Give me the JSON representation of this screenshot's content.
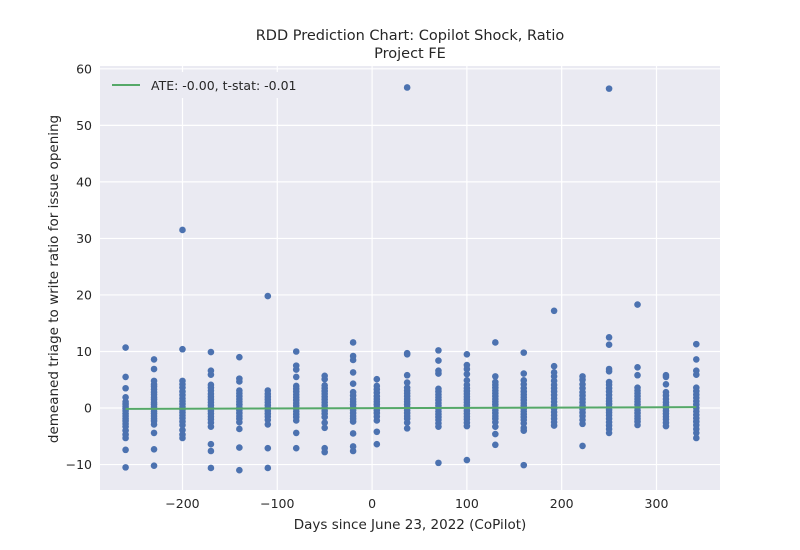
{
  "chart_data": {
    "type": "scatter",
    "title": "RDD Prediction Chart: Copilot Shock, Ratio",
    "subtitle": "Project FE",
    "xlabel": "Days since June 23, 2022 (CoPilot)",
    "ylabel": "demeaned triage to write ratio for issue opening",
    "xlim": [
      -287,
      367
    ],
    "ylim": [
      -14.5,
      60.5
    ],
    "x_ticks": [
      -200,
      -100,
      0,
      100,
      200,
      300
    ],
    "y_ticks": [
      -10,
      0,
      10,
      20,
      30,
      40,
      50,
      60
    ],
    "x_tick_labels": [
      "−200",
      "−100",
      "0",
      "100",
      "200",
      "300"
    ],
    "y_tick_labels": [
      "−10",
      "0",
      "10",
      "20",
      "30",
      "40",
      "50",
      "60"
    ],
    "grid": true,
    "legend_position": "top-left",
    "colors": {
      "background": "#EAEAF2",
      "grid": "#FFFFFF",
      "points": "#4C72B0",
      "line": "#55A868"
    },
    "series": [
      {
        "name": "points",
        "kind": "scatter",
        "groups": [
          {
            "x": -260,
            "y": [
              10.7,
              5.5,
              3.5,
              1.9,
              1.1,
              0.7,
              0.3,
              -0.1,
              -0.5,
              -1.0,
              -1.4,
              -1.9,
              -2.3,
              -2.8,
              -3.3,
              -4.0,
              -4.7,
              -5.3,
              -7.4,
              -10.5
            ]
          },
          {
            "x": -230,
            "y": [
              8.6,
              6.9,
              4.8,
              4.2,
              3.8,
              3.3,
              2.8,
              2.4,
              1.9,
              1.5,
              1.0,
              0.6,
              0.2,
              -0.2,
              -0.6,
              -1.0,
              -1.4,
              -1.9,
              -2.3,
              -2.9,
              -4.4,
              -7.3,
              -10.2
            ]
          },
          {
            "x": -200,
            "y": [
              31.5,
              10.4,
              4.8,
              4.2,
              3.6,
              2.9,
              2.3,
              1.7,
              1.2,
              0.7,
              0.2,
              -0.3,
              -0.8,
              -1.3,
              -1.8,
              -2.4,
              -3.0,
              -3.9,
              -4.7,
              -5.3
            ]
          },
          {
            "x": -170,
            "y": [
              9.9,
              6.6,
              5.9,
              4.1,
              3.6,
              3.1,
              2.5,
              2.0,
              1.5,
              1.0,
              0.5,
              0.0,
              -0.5,
              -1.0,
              -1.5,
              -2.0,
              -2.6,
              -3.3,
              -6.4,
              -7.6,
              -10.6
            ]
          },
          {
            "x": -140,
            "y": [
              9.0,
              5.2,
              4.7,
              3.1,
              2.6,
              2.1,
              1.6,
              1.1,
              0.6,
              0.1,
              -0.4,
              -0.9,
              -1.4,
              -1.9,
              -2.5,
              -3.7,
              -7.0,
              -11.0
            ]
          },
          {
            "x": -110,
            "y": [
              19.8,
              3.1,
              2.5,
              2.0,
              1.5,
              1.0,
              0.5,
              0.0,
              -0.5,
              -1.0,
              -1.5,
              -2.1,
              -2.9,
              -7.1,
              -10.6
            ]
          },
          {
            "x": -80,
            "y": [
              10.0,
              7.5,
              6.8,
              5.5,
              3.9,
              3.4,
              2.9,
              2.4,
              1.9,
              1.4,
              0.9,
              0.4,
              -0.1,
              -0.6,
              -1.1,
              -1.6,
              -2.2,
              -4.4,
              -7.1
            ]
          },
          {
            "x": -50,
            "y": [
              5.7,
              5.1,
              4.0,
              3.5,
              3.0,
              2.5,
              2.0,
              1.5,
              1.0,
              0.5,
              0.0,
              -0.5,
              -1.0,
              -1.6,
              -2.6,
              -3.5,
              -7.1,
              -7.8
            ]
          },
          {
            "x": -20,
            "y": [
              11.6,
              9.2,
              8.5,
              6.3,
              4.3,
              2.8,
              2.2,
              1.6,
              1.1,
              0.6,
              0.1,
              -0.4,
              -0.9,
              -1.4,
              -1.9,
              -2.4,
              -4.5,
              -6.8,
              -7.6
            ]
          },
          {
            "x": 5,
            "y": [
              5.1,
              3.9,
              3.3,
              2.7,
              2.1,
              1.6,
              1.1,
              0.6,
              0.1,
              -0.4,
              -0.9,
              -1.5,
              -2.2,
              -4.2,
              -6.4
            ]
          },
          {
            "x": 37,
            "y": [
              56.7,
              9.7,
              9.5,
              5.8,
              4.5,
              3.6,
              3.1,
              2.6,
              2.1,
              1.6,
              1.1,
              0.6,
              0.1,
              -0.4,
              -0.9,
              -1.4,
              -1.9,
              -2.6,
              -3.6
            ]
          },
          {
            "x": 70,
            "y": [
              10.2,
              8.4,
              6.6,
              6.1,
              3.4,
              2.9,
              2.4,
              1.9,
              1.4,
              0.9,
              0.4,
              -0.1,
              -0.6,
              -1.1,
              -1.6,
              -2.1,
              -2.7,
              -3.3,
              -9.7
            ]
          },
          {
            "x": 100,
            "y": [
              9.5,
              7.6,
              6.9,
              6.0,
              4.9,
              4.1,
              3.5,
              3.0,
              2.5,
              2.0,
              1.5,
              1.0,
              0.5,
              0.0,
              -0.5,
              -1.0,
              -1.5,
              -2.0,
              -2.6,
              -3.2,
              -9.2
            ]
          },
          {
            "x": 130,
            "y": [
              11.6,
              5.6,
              4.6,
              4.1,
              3.6,
              3.1,
              2.6,
              2.1,
              1.6,
              1.1,
              0.6,
              0.1,
              -0.4,
              -0.9,
              -1.4,
              -1.9,
              -2.5,
              -3.3,
              -4.6,
              -6.5
            ]
          },
          {
            "x": 160,
            "y": [
              9.8,
              6.1,
              4.9,
              4.2,
              3.5,
              2.9,
              2.4,
              1.9,
              1.4,
              0.9,
              0.4,
              -0.1,
              -0.6,
              -1.1,
              -1.6,
              -2.1,
              -2.7,
              -3.5,
              -4.0,
              -10.1
            ]
          },
          {
            "x": 192,
            "y": [
              17.2,
              7.4,
              6.3,
              5.6,
              4.8,
              4.1,
              3.5,
              2.9,
              2.3,
              1.7,
              1.1,
              0.5,
              -0.1,
              -0.7,
              -1.3,
              -1.9,
              -2.5,
              -3.1
            ]
          },
          {
            "x": 222,
            "y": [
              5.6,
              5.0,
              4.2,
              3.5,
              2.8,
              2.2,
              1.6,
              1.0,
              0.4,
              -0.2,
              -0.8,
              -1.4,
              -2.1,
              -2.8,
              -6.7
            ]
          },
          {
            "x": 250,
            "y": [
              56.5,
              12.5,
              11.2,
              6.9,
              6.5,
              4.6,
              4.1,
              3.5,
              2.9,
              2.3,
              1.7,
              1.2,
              0.7,
              0.2,
              -0.3,
              -0.8,
              -1.3,
              -1.9,
              -2.5,
              -3.1,
              -3.7,
              -4.4
            ]
          },
          {
            "x": 280,
            "y": [
              18.3,
              7.2,
              5.8,
              3.6,
              3.1,
              2.6,
              2.1,
              1.6,
              1.1,
              0.6,
              0.1,
              -0.4,
              -0.9,
              -1.4,
              -1.9,
              -2.4,
              -3.0
            ]
          },
          {
            "x": 310,
            "y": [
              5.8,
              5.5,
              4.2,
              2.8,
              2.2,
              1.6,
              1.0,
              0.5,
              0.0,
              -0.5,
              -1.0,
              -1.5,
              -2.0,
              -2.6,
              -3.2
            ]
          },
          {
            "x": 342,
            "y": [
              11.3,
              8.6,
              6.6,
              5.9,
              3.6,
              3.0,
              2.4,
              1.8,
              1.2,
              0.6,
              0.0,
              -0.6,
              -1.2,
              -1.8,
              -2.4,
              -3.0,
              -3.7,
              -4.4,
              -5.3
            ]
          }
        ]
      },
      {
        "name": "ATE: -0.00, t-stat: -0.01",
        "kind": "line",
        "x": [
          -260,
          342
        ],
        "y": [
          -0.15,
          0.15
        ]
      }
    ]
  }
}
